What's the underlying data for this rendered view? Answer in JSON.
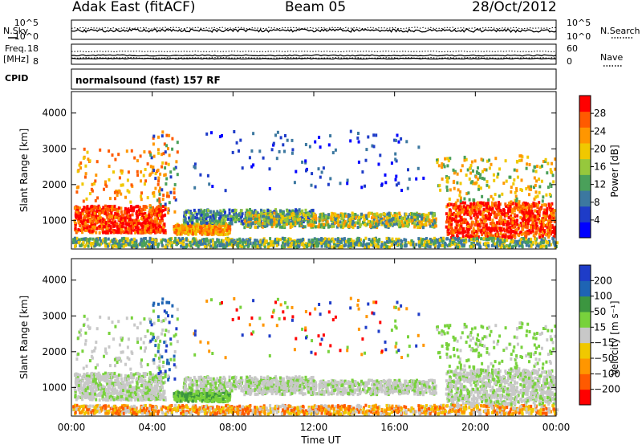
{
  "header": {
    "site": "Adak East (fitACF)",
    "beam": "Beam 05",
    "date": "28/Oct/2012"
  },
  "panels": {
    "nsky_label": "N.Sky",
    "nsearch_label": "N.Search",
    "count_ticks": [
      "10^5",
      "10^0"
    ],
    "freq_label": "Freq.",
    "freq_unit": "[MHz]",
    "freq_ticks": [
      "18",
      "8"
    ],
    "nave_label": "Nave",
    "nave_ticks": [
      "60",
      "0"
    ],
    "cpid_label": "CPID",
    "cpid_value": "normalsound (fast) 157 RF"
  },
  "chart_data": [
    {
      "type": "heatmap",
      "title": "Power",
      "ylabel": "Slant Range [km]",
      "xlabel": "Time UT",
      "ylim": [
        200,
        4600
      ],
      "x_ticks": [
        "00:00",
        "04:00",
        "08:00",
        "12:00",
        "16:00",
        "20:00",
        "00:00"
      ],
      "y_ticks": [
        1000,
        2000,
        3000,
        4000
      ],
      "colorbar": {
        "label": "Power [dB]",
        "ticks": [
          "28",
          "24",
          "20",
          "16",
          "12",
          "8",
          "4"
        ],
        "colors": [
          "#0000ff",
          "#1e3cc8",
          "#3c78a0",
          "#4aa05a",
          "#96c83c",
          "#f0c800",
          "#ff9600",
          "#ff5a00",
          "#ff0000"
        ]
      }
    },
    {
      "type": "heatmap",
      "title": "Velocity",
      "ylabel": "Slant Range [km]",
      "xlabel": "Time UT",
      "ylim": [
        200,
        4600
      ],
      "x_ticks": [
        "00:00",
        "04:00",
        "08:00",
        "12:00",
        "16:00",
        "20:00",
        "00:00"
      ],
      "y_ticks": [
        1000,
        2000,
        3000,
        4000
      ],
      "colorbar": {
        "label": "Velocity [m s⁻¹]",
        "ticks": [
          "200",
          "100",
          "50",
          "15",
          "−15",
          "−50",
          "−100",
          "−200"
        ],
        "colors": [
          "#ff0000",
          "#ff5a00",
          "#ff9600",
          "#f0c800",
          "#c8c8c8",
          "#78d23c",
          "#3c9640",
          "#1e64b4",
          "#1e3cc8"
        ]
      }
    }
  ]
}
